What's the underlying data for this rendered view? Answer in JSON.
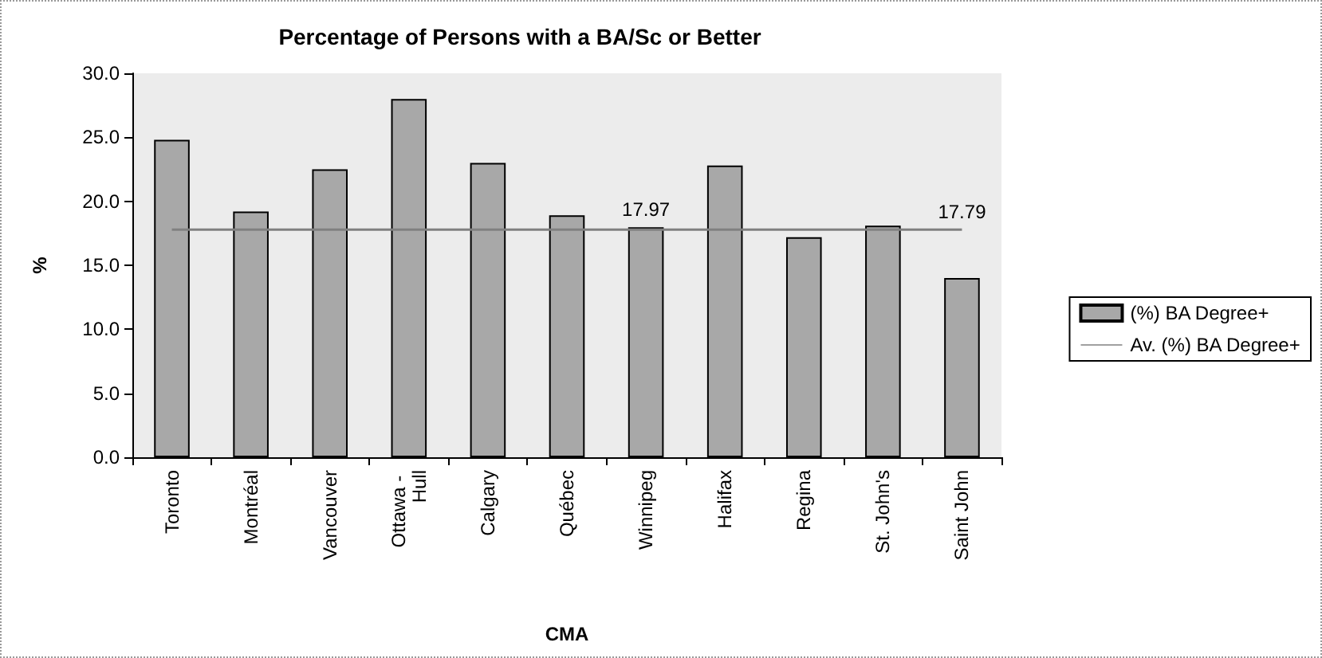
{
  "chart_data": {
    "type": "bar",
    "title": "Percentage of Persons with a BA/Sc or Better",
    "xlabel": "CMA",
    "ylabel": "%",
    "categories": [
      "Toronto",
      "Montréal",
      "Vancouver",
      "Ottawa - Hull",
      "Calgary",
      "Québec",
      "Winnipeg",
      "Halifax",
      "Regina",
      "St. John's",
      "Saint John"
    ],
    "series": [
      {
        "name": "(%) BA Degree+",
        "color": "#a8a8a8",
        "values": [
          24.8,
          19.2,
          22.5,
          28.0,
          23.0,
          18.9,
          17.97,
          22.8,
          17.2,
          18.1,
          14.0
        ],
        "value_labels": [
          null,
          null,
          null,
          null,
          null,
          null,
          "17.97",
          null,
          null,
          null,
          null
        ]
      },
      {
        "name": "Av. (%) BA Degree+",
        "type": "line",
        "color": "#808080",
        "values": [
          17.79,
          17.79,
          17.79,
          17.79,
          17.79,
          17.79,
          17.79,
          17.79,
          17.79,
          17.79,
          17.79
        ],
        "value_labels": [
          null,
          null,
          null,
          null,
          null,
          null,
          null,
          null,
          null,
          null,
          "17.79"
        ]
      }
    ],
    "ylim": [
      0,
      30
    ],
    "yticks": [
      {
        "value": 0,
        "label": "0.0"
      },
      {
        "value": 5,
        "label": "5.0"
      },
      {
        "value": 10,
        "label": "10.0"
      },
      {
        "value": 15,
        "label": "15.0"
      },
      {
        "value": 20,
        "label": "20.0"
      },
      {
        "value": 25,
        "label": "25.0"
      },
      {
        "value": 30,
        "label": "30.0"
      }
    ],
    "grid": false,
    "legend": "right",
    "marker": "none",
    "line_style": "solid"
  }
}
